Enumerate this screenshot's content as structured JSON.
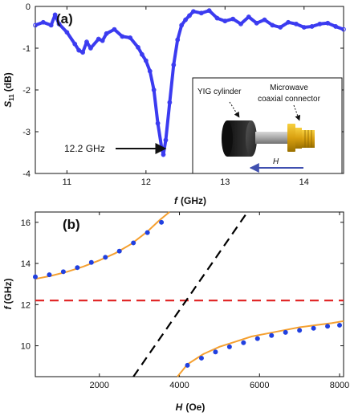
{
  "chart_data": [
    {
      "panel": "(a)",
      "type": "line",
      "xlabel_var": "f",
      "xlabel_unit": "(GHz)",
      "ylabel_var": "S",
      "ylabel_sub": "11",
      "ylabel_unit": "(dB)",
      "xlim": [
        10.6,
        14.5
      ],
      "ylim": [
        -4,
        0
      ],
      "xticks": [
        11,
        12,
        13,
        14
      ],
      "yticks": [
        0,
        -1,
        -2,
        -3,
        -4
      ],
      "series": [
        {
          "color": "#3b3bf0",
          "x": [
            10.6,
            10.7,
            10.8,
            10.85,
            10.9,
            11.0,
            11.1,
            11.15,
            11.2,
            11.25,
            11.3,
            11.4,
            11.45,
            11.5,
            11.6,
            11.7,
            11.8,
            11.9,
            11.95,
            12.0,
            12.05,
            12.1,
            12.15,
            12.2,
            12.22,
            12.25,
            12.3,
            12.35,
            12.4,
            12.45,
            12.5,
            12.55,
            12.6,
            12.7,
            12.8,
            12.9,
            13.0,
            13.1,
            13.2,
            13.3,
            13.4,
            13.5,
            13.6,
            13.7,
            13.8,
            13.9,
            14.0,
            14.1,
            14.2,
            14.3,
            14.4,
            14.5
          ],
          "y": [
            -0.45,
            -0.38,
            -0.45,
            -0.2,
            -0.42,
            -0.62,
            -0.9,
            -1.05,
            -1.1,
            -0.85,
            -1.0,
            -0.78,
            -0.82,
            -0.65,
            -0.55,
            -0.72,
            -0.75,
            -0.98,
            -1.15,
            -1.3,
            -1.55,
            -2.0,
            -2.8,
            -3.4,
            -3.55,
            -3.2,
            -2.3,
            -1.4,
            -0.8,
            -0.45,
            -0.32,
            -0.22,
            -0.12,
            -0.16,
            -0.1,
            -0.28,
            -0.35,
            -0.3,
            -0.42,
            -0.25,
            -0.4,
            -0.32,
            -0.45,
            -0.5,
            -0.38,
            -0.42,
            -0.5,
            -0.48,
            -0.42,
            -0.4,
            -0.48,
            -0.55
          ]
        }
      ],
      "annotation": "12.2 GHz",
      "annotation_x": 12.22,
      "annotation_y": -3.55,
      "inset": {
        "label_yig": "YIG cylinder",
        "label_mw_1": "Microwave",
        "label_mw_2": "coaxial connector",
        "label_h": "H"
      }
    },
    {
      "panel": "(b)",
      "type": "scatter",
      "xlabel_var": "H",
      "xlabel_unit": "(Oe)",
      "ylabel_var": "f",
      "ylabel_unit": "(GHz)",
      "xlim": [
        400,
        8100
      ],
      "ylim": [
        8.5,
        16.5
      ],
      "xticks": [
        2000,
        4000,
        6000,
        8000
      ],
      "yticks": [
        10,
        12,
        14,
        16
      ],
      "series": [
        {
          "type": "scatter",
          "color": "#2040e0",
          "x": [
            400,
            750,
            1100,
            1450,
            1800,
            2150,
            2500,
            2850,
            3200,
            3550
          ],
          "y": [
            13.35,
            13.45,
            13.6,
            13.8,
            14.05,
            14.3,
            14.6,
            15.0,
            15.5,
            16.0
          ]
        },
        {
          "type": "scatter",
          "color": "#2040e0",
          "x": [
            4200,
            4550,
            4900,
            5250,
            5600,
            5950,
            6300,
            6650,
            7000,
            7350,
            7700,
            8000
          ],
          "y": [
            9.05,
            9.4,
            9.7,
            9.95,
            10.15,
            10.35,
            10.5,
            10.65,
            10.75,
            10.85,
            10.95,
            11.0
          ]
        },
        {
          "type": "line",
          "color": "#f5a030",
          "x": [
            400,
            800,
            1200,
            1600,
            2000,
            2400,
            2800,
            3200,
            3500,
            3750
          ],
          "y": [
            13.25,
            13.4,
            13.6,
            13.85,
            14.15,
            14.5,
            14.95,
            15.55,
            16.1,
            16.5
          ]
        },
        {
          "type": "line",
          "color": "#f5a030",
          "x": [
            3950,
            4200,
            4600,
            5000,
            5400,
            5800,
            6200,
            6600,
            7000,
            7400,
            7800,
            8100
          ],
          "y": [
            8.5,
            9.1,
            9.6,
            9.95,
            10.2,
            10.45,
            10.6,
            10.75,
            10.9,
            11.0,
            11.1,
            11.2
          ]
        },
        {
          "type": "line",
          "dashed": true,
          "color": "#e02020",
          "x": [
            400,
            8100
          ],
          "y": [
            12.2,
            12.2
          ]
        },
        {
          "type": "line",
          "dashed": true,
          "color": "#000000",
          "x": [
            2850,
            5700
          ],
          "y": [
            8.5,
            16.5
          ]
        }
      ]
    }
  ]
}
